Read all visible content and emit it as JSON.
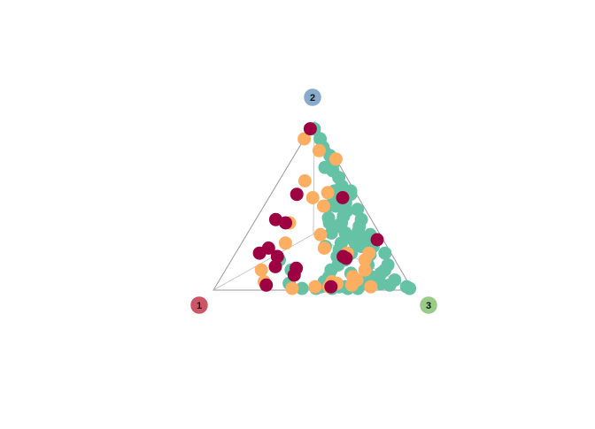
{
  "chart_data": {
    "type": "scatter",
    "subtype": "ternary",
    "grid": true,
    "axes": [
      "1",
      "2",
      "3"
    ],
    "vertex_colors": [
      "#cc5566",
      "#88aacc",
      "#99cc88"
    ],
    "series": [
      {
        "color": "#66c2a5",
        "points": [
          [
            0.02,
            0.96,
            0.02
          ],
          [
            0.02,
            0.9,
            0.08
          ],
          [
            0.03,
            0.85,
            0.12
          ],
          [
            0.02,
            0.8,
            0.18
          ],
          [
            0.03,
            0.75,
            0.22
          ],
          [
            0.08,
            0.73,
            0.19
          ],
          [
            0.05,
            0.71,
            0.24
          ],
          [
            0.04,
            0.67,
            0.29
          ],
          [
            0.05,
            0.62,
            0.33
          ],
          [
            0.02,
            0.59,
            0.39
          ],
          [
            0.03,
            0.57,
            0.4
          ],
          [
            0.06,
            0.58,
            0.36
          ],
          [
            0.1,
            0.59,
            0.31
          ],
          [
            0.12,
            0.56,
            0.32
          ],
          [
            0.08,
            0.52,
            0.4
          ],
          [
            0.14,
            0.5,
            0.36
          ],
          [
            0.18,
            0.5,
            0.32
          ],
          [
            0.04,
            0.48,
            0.48
          ],
          [
            0.1,
            0.47,
            0.43
          ],
          [
            0.13,
            0.44,
            0.43
          ],
          [
            0.16,
            0.4,
            0.44
          ],
          [
            0.21,
            0.43,
            0.36
          ],
          [
            0.22,
            0.4,
            0.38
          ],
          [
            0.05,
            0.42,
            0.53
          ],
          [
            0.08,
            0.38,
            0.54
          ],
          [
            0.1,
            0.35,
            0.55
          ],
          [
            0.12,
            0.32,
            0.56
          ],
          [
            0.15,
            0.28,
            0.57
          ],
          [
            0.2,
            0.22,
            0.58
          ],
          [
            0.25,
            0.18,
            0.57
          ],
          [
            0.3,
            0.15,
            0.55
          ],
          [
            0.35,
            0.12,
            0.53
          ],
          [
            0.38,
            0.08,
            0.54
          ],
          [
            0.42,
            0.05,
            0.53
          ],
          [
            0.45,
            0.02,
            0.53
          ],
          [
            0.48,
            0.01,
            0.51
          ],
          [
            0.4,
            0.01,
            0.59
          ],
          [
            0.33,
            0.02,
            0.65
          ],
          [
            0.27,
            0.01,
            0.72
          ],
          [
            0.2,
            0.06,
            0.74
          ],
          [
            0.14,
            0.04,
            0.82
          ],
          [
            0.1,
            0.03,
            0.87
          ],
          [
            0.08,
            0.12,
            0.8
          ],
          [
            0.05,
            0.15,
            0.8
          ],
          [
            0.03,
            0.22,
            0.75
          ],
          [
            0.02,
            0.02,
            0.96
          ],
          [
            0.01,
            0.01,
            0.98
          ],
          [
            0.06,
            0.06,
            0.88
          ],
          [
            0.15,
            0.15,
            0.7
          ],
          [
            0.11,
            0.21,
            0.68
          ],
          [
            0.13,
            0.26,
            0.61
          ],
          [
            0.18,
            0.31,
            0.51
          ],
          [
            0.17,
            0.34,
            0.49
          ],
          [
            0.09,
            0.3,
            0.61
          ],
          [
            0.07,
            0.26,
            0.67
          ],
          [
            0.22,
            0.28,
            0.5
          ],
          [
            0.24,
            0.34,
            0.42
          ],
          [
            0.19,
            0.38,
            0.43
          ],
          [
            0.25,
            0.24,
            0.51
          ],
          [
            0.28,
            0.2,
            0.52
          ],
          [
            0.31,
            0.26,
            0.43
          ],
          [
            0.05,
            0.33,
            0.62
          ],
          [
            0.55,
            0.12,
            0.33
          ],
          [
            0.58,
            0.18,
            0.24
          ],
          [
            0.55,
            0.01,
            0.44
          ],
          [
            0.32,
            0.01,
            0.67
          ],
          [
            0.6,
            0.04,
            0.36
          ],
          [
            0.36,
            0.02,
            0.62
          ],
          [
            0.11,
            0.1,
            0.79
          ],
          [
            0.17,
            0.08,
            0.75
          ],
          [
            0.26,
            0.1,
            0.64
          ],
          [
            0.23,
            0.04,
            0.73
          ]
        ]
      },
      {
        "color": "#fdae61",
        "points": [
          [
            0.06,
            0.83,
            0.11
          ],
          [
            0.1,
            0.9,
            0.0
          ],
          [
            0.22,
            0.65,
            0.13
          ],
          [
            0.14,
            0.58,
            0.28
          ],
          [
            0.2,
            0.5,
            0.3
          ],
          [
            0.23,
            0.55,
            0.22
          ],
          [
            0.42,
            0.4,
            0.18
          ],
          [
            0.5,
            0.28,
            0.22
          ],
          [
            0.3,
            0.33,
            0.37
          ],
          [
            0.32,
            0.25,
            0.43
          ],
          [
            0.22,
            0.22,
            0.56
          ],
          [
            0.15,
            0.18,
            0.67
          ],
          [
            0.26,
            0.08,
            0.66
          ],
          [
            0.29,
            0.03,
            0.68
          ],
          [
            0.2,
            0.02,
            0.78
          ],
          [
            0.36,
            0.04,
            0.6
          ],
          [
            0.48,
            0.02,
            0.5
          ],
          [
            0.6,
            0.01,
            0.39
          ],
          [
            0.7,
            0.12,
            0.18
          ],
          [
            0.72,
            0.05,
            0.23
          ],
          [
            0.18,
            0.12,
            0.7
          ],
          [
            0.11,
            0.22,
            0.67
          ],
          [
            0.0,
            0.78,
            0.22
          ],
          [
            0.25,
            0.06,
            0.69
          ],
          [
            0.38,
            0.05,
            0.57
          ],
          [
            0.41,
            0.02,
            0.57
          ]
        ]
      },
      {
        "color": "#9e0142",
        "points": [
          [
            0.04,
            0.96,
            0.0
          ],
          [
            0.3,
            0.57,
            0.13
          ],
          [
            0.44,
            0.4,
            0.16
          ],
          [
            0.48,
            0.42,
            0.1
          ],
          [
            0.6,
            0.25,
            0.15
          ],
          [
            0.66,
            0.22,
            0.12
          ],
          [
            0.58,
            0.2,
            0.22
          ],
          [
            0.55,
            0.09,
            0.36
          ],
          [
            0.52,
            0.13,
            0.35
          ],
          [
            0.4,
            0.02,
            0.58
          ],
          [
            0.72,
            0.03,
            0.25
          ],
          [
            0.62,
            0.14,
            0.24
          ],
          [
            0.08,
            0.55,
            0.37
          ],
          [
            0.24,
            0.19,
            0.57
          ],
          [
            0.03,
            0.3,
            0.67
          ],
          [
            0.25,
            0.2,
            0.55
          ]
        ]
      }
    ]
  }
}
